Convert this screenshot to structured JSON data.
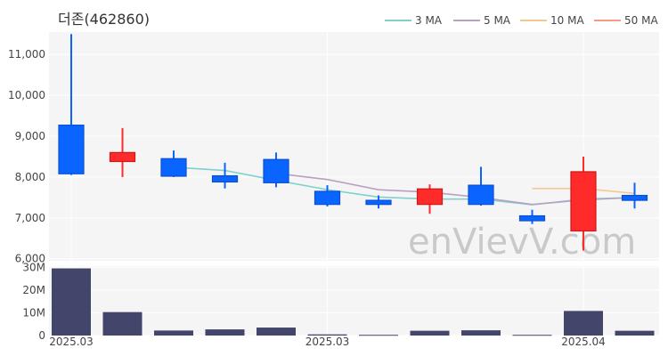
{
  "chart_data": {
    "type": "candlestick",
    "title": "더존(462860)",
    "watermark": "enVievV.com",
    "colors": {
      "up": "#ff2a2a",
      "down": "#0a64ff",
      "volume": "#43456a",
      "ma3": "#7fd0cf",
      "ma5": "#b8a0c2",
      "ma10": "#f3c993",
      "ma50": "#f59a87",
      "panel_bg": "#f5f5f5"
    },
    "legend": [
      {
        "label": "3 MA",
        "key": "ma3"
      },
      {
        "label": "5 MA",
        "key": "ma5"
      },
      {
        "label": "10 MA",
        "key": "ma10"
      },
      {
        "label": "50 MA",
        "key": "ma50"
      }
    ],
    "price_ticks": [
      "6,000",
      "7,000",
      "8,000",
      "9,000",
      "10,000",
      "11,000"
    ],
    "price_tick_values": [
      6000,
      7000,
      8000,
      9000,
      10000,
      11000
    ],
    "price_range": [
      5950,
      11550
    ],
    "volume_ticks": [
      "0",
      "10M",
      "20M",
      "30M"
    ],
    "volume_tick_values": [
      0,
      10000000,
      20000000,
      30000000
    ],
    "volume_range": [
      0,
      30500000
    ],
    "x_labels": [
      {
        "index": 0,
        "label": "2025.03"
      },
      {
        "index": 5,
        "label": "2025.03"
      },
      {
        "index": 10,
        "label": "2025.04"
      }
    ],
    "candles": [
      {
        "open": 9270,
        "high": 11500,
        "low": 8050,
        "close": 8080
      },
      {
        "open": 8380,
        "high": 9200,
        "low": 8000,
        "close": 8600
      },
      {
        "open": 8450,
        "high": 8650,
        "low": 8000,
        "close": 8020
      },
      {
        "open": 8030,
        "high": 8350,
        "low": 7720,
        "close": 7880
      },
      {
        "open": 8430,
        "high": 8600,
        "low": 7750,
        "close": 7860
      },
      {
        "open": 7650,
        "high": 7800,
        "low": 7280,
        "close": 7330
      },
      {
        "open": 7430,
        "high": 7550,
        "low": 7230,
        "close": 7330
      },
      {
        "open": 7330,
        "high": 7820,
        "low": 7100,
        "close": 7710
      },
      {
        "open": 7800,
        "high": 8250,
        "low": 7300,
        "close": 7330
      },
      {
        "open": 7050,
        "high": 7200,
        "low": 6850,
        "close": 6930
      },
      {
        "open": 6680,
        "high": 8500,
        "low": 6200,
        "close": 8130
      },
      {
        "open": 7550,
        "high": 7860,
        "low": 7230,
        "close": 7430
      }
    ],
    "volume": [
      29500000,
      10300000,
      2200000,
      2700000,
      3500000,
      500000,
      300000,
      2100000,
      2300000,
      300000,
      10800000,
      2100000
    ],
    "ma3": [
      null,
      null,
      8240,
      8160,
      7920,
      7690,
      7510,
      7460,
      7460,
      7320,
      7460,
      7500
    ],
    "ma5": [
      null,
      null,
      null,
      null,
      8090,
      7940,
      7690,
      7630,
      7500,
      7330,
      7440,
      7500
    ],
    "ma10": [
      null,
      null,
      null,
      null,
      null,
      null,
      null,
      null,
      null,
      7720,
      7720,
      7600
    ],
    "ma50": []
  }
}
